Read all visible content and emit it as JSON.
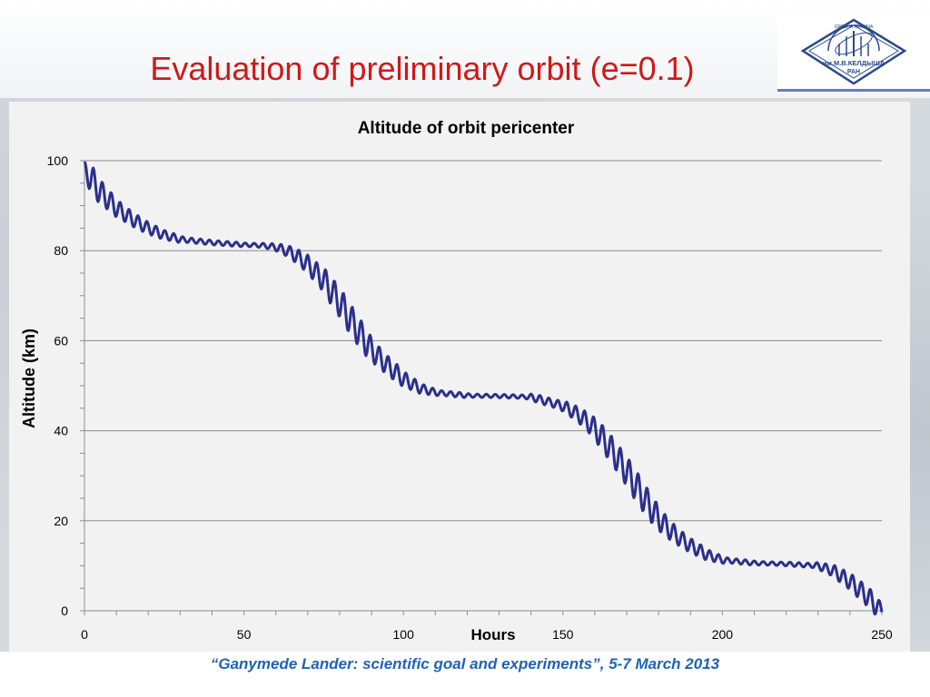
{
  "slide": {
    "title_main": "Evaluation of preliminary orbit",
    "title_param": "(e=0.1)",
    "footer": "“Ganymede Lander: scientific goal and experiments”, 5-7 March 2013"
  },
  "logo": {
    "text": "им.М.В.КЕЛДЫША",
    "sub": "РАН",
    "arc": "ОРДЕНА ЛЕНИНА"
  },
  "colors": {
    "title": "#d01818",
    "series": "#2b2f8c",
    "footer": "#1e62b8"
  },
  "chart_data": {
    "type": "line",
    "title": "Altitude of orbit pericenter",
    "xlabel": "Hours",
    "ylabel": "Altitude (km)",
    "xlim": [
      0,
      250
    ],
    "ylim": [
      0,
      100
    ],
    "xticks": [
      0,
      50,
      100,
      150,
      200,
      250
    ],
    "yticks": [
      0,
      20,
      40,
      60,
      80,
      100
    ],
    "grid": "horizontal",
    "legend": "none",
    "oscillation_period_hours": 2.8,
    "series": [
      {
        "name": "",
        "x": [
          0,
          5,
          10,
          15,
          20,
          25,
          30,
          40,
          50,
          55,
          60,
          65,
          70,
          75,
          80,
          85,
          90,
          95,
          100,
          105,
          110,
          120,
          130,
          140,
          150,
          155,
          160,
          165,
          170,
          175,
          180,
          185,
          190,
          195,
          200,
          210,
          220,
          230,
          235,
          240,
          245,
          250
        ],
        "y": [
          98,
          93,
          89.5,
          87,
          85,
          83.5,
          82.5,
          81.8,
          81.3,
          81.2,
          80.8,
          79.5,
          77,
          73.5,
          68.5,
          63,
          58,
          54.5,
          51.5,
          49.5,
          48.5,
          47.8,
          47.7,
          47.5,
          45.5,
          43.5,
          40.5,
          36,
          31,
          25.5,
          20.5,
          17,
          14.5,
          12.5,
          11.3,
          10.6,
          10.4,
          10,
          8.8,
          6.5,
          3.5,
          0
        ]
      }
    ]
  }
}
